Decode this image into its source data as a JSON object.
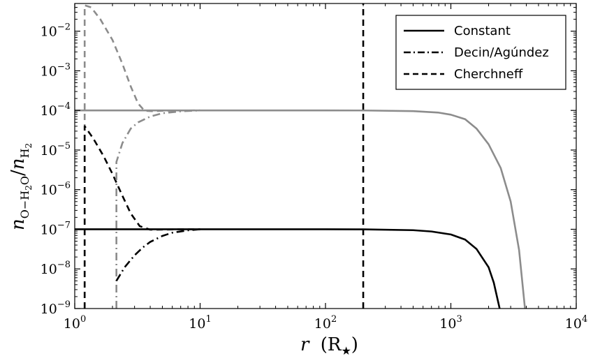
{
  "chart_data": {
    "type": "line",
    "xscale": "log",
    "yscale": "log",
    "xlim": [
      1,
      10000
    ],
    "ylim": [
      1e-09,
      0.05
    ],
    "xticks": [
      {
        "value": 1,
        "base": "10",
        "exp": "0"
      },
      {
        "value": 10,
        "base": "10",
        "exp": "1"
      },
      {
        "value": 100,
        "base": "10",
        "exp": "2"
      },
      {
        "value": 1000,
        "base": "10",
        "exp": "3"
      },
      {
        "value": 10000,
        "base": "10",
        "exp": "4"
      }
    ],
    "yticks": [
      {
        "value": 1e-09,
        "base": "10",
        "exp": "−9"
      },
      {
        "value": 1e-08,
        "base": "10",
        "exp": "−8"
      },
      {
        "value": 1e-07,
        "base": "10",
        "exp": "−7"
      },
      {
        "value": 1e-06,
        "base": "10",
        "exp": "−6"
      },
      {
        "value": 1e-05,
        "base": "10",
        "exp": "−5"
      },
      {
        "value": 0.0001,
        "base": "10",
        "exp": "−4"
      },
      {
        "value": 0.001,
        "base": "10",
        "exp": "−3"
      },
      {
        "value": 0.01,
        "base": "10",
        "exp": "−2"
      }
    ],
    "xlabel": {
      "main": "r",
      "unit": "(R",
      "sub": "★",
      "close": ")"
    },
    "ylabel": {
      "n": "n",
      "sub1": "O−H",
      "sub1b": "2",
      "sub1c": "O",
      "slash": "/",
      "n2": "n",
      "sub2": "H",
      "sub2b": "2"
    },
    "legend": {
      "position": "top-right",
      "entries": [
        {
          "label": "Constant",
          "style": "solid"
        },
        {
          "label": "Decin/Agúndez",
          "style": "dashdot"
        },
        {
          "label": "Cherchneff",
          "style": "dashed"
        }
      ]
    },
    "grid": false,
    "colors": {
      "black": "#000000",
      "gray": "#8c8c8c"
    },
    "series": [
      {
        "style": "solid",
        "color": "#8c8c8c",
        "points": [
          [
            1,
            0.0001
          ],
          [
            10,
            0.0001
          ],
          [
            100,
            0.0001
          ],
          [
            200,
            9.98e-05
          ],
          [
            500,
            9.6e-05
          ],
          [
            800,
            8.8e-05
          ],
          [
            1000,
            7.8e-05
          ],
          [
            1300,
            6e-05
          ],
          [
            1600,
            3.5e-05
          ],
          [
            2000,
            1.4e-05
          ],
          [
            2500,
            3.5e-06
          ],
          [
            3000,
            5e-07
          ],
          [
            3500,
            3e-08
          ],
          [
            3900,
            1e-09
          ]
        ]
      },
      {
        "style": "solid",
        "color": "#000000",
        "points": [
          [
            1,
            1e-07
          ],
          [
            10,
            1e-07
          ],
          [
            100,
            1e-07
          ],
          [
            200,
            9.98e-08
          ],
          [
            500,
            9.5e-08
          ],
          [
            700,
            8.8e-08
          ],
          [
            1000,
            7.4e-08
          ],
          [
            1300,
            5.5e-08
          ],
          [
            1600,
            3.2e-08
          ],
          [
            2000,
            1.1e-08
          ],
          [
            2200,
            4.5e-09
          ],
          [
            2450,
            1e-09
          ]
        ]
      },
      {
        "style": "dashed",
        "color": "#8c8c8c",
        "points": [
          [
            1.2,
            1e-09
          ],
          [
            1.2,
            0.045
          ],
          [
            1.35,
            0.04
          ],
          [
            1.6,
            0.02
          ],
          [
            2,
            0.006
          ],
          [
            2.4,
            0.0015
          ],
          [
            2.8,
            0.0004
          ],
          [
            3.2,
            0.00015
          ],
          [
            3.6,
            9.8e-05
          ],
          [
            4.2,
            9.55e-05
          ],
          [
            5,
            9.8e-05
          ],
          [
            7,
            9.97e-05
          ],
          [
            10,
            0.0001
          ]
        ]
      },
      {
        "style": "dashed",
        "color": "#000000",
        "points": [
          [
            1.2,
            1e-09
          ],
          [
            1.2,
            4e-05
          ],
          [
            1.4,
            2e-05
          ],
          [
            1.7,
            7e-06
          ],
          [
            2,
            2.5e-06
          ],
          [
            2.4,
            7e-07
          ],
          [
            2.8,
            2.5e-07
          ],
          [
            3.3,
            1.2e-07
          ],
          [
            4,
            9.8e-08
          ],
          [
            5,
            9.85e-08
          ],
          [
            7,
            9.98e-08
          ],
          [
            10,
            1e-07
          ]
        ]
      },
      {
        "style": "dashdot",
        "color": "#8c8c8c",
        "points": [
          [
            2.15,
            1e-09
          ],
          [
            2.15,
            5e-06
          ],
          [
            2.4,
            1.5e-05
          ],
          [
            2.8,
            3.5e-05
          ],
          [
            3.2,
            5e-05
          ],
          [
            4,
            7e-05
          ],
          [
            5,
            8.5e-05
          ],
          [
            7,
            9.5e-05
          ],
          [
            10,
            0.0001
          ]
        ]
      },
      {
        "style": "dashdot",
        "color": "#000000",
        "points": [
          [
            2.15,
            5e-09
          ],
          [
            2.5,
            1.1e-08
          ],
          [
            3,
            2.2e-08
          ],
          [
            3.5,
            3.5e-08
          ],
          [
            4,
            4.8e-08
          ],
          [
            5,
            6.8e-08
          ],
          [
            6,
            8.2e-08
          ],
          [
            8,
            9.4e-08
          ],
          [
            10,
            1e-07
          ]
        ]
      },
      {
        "style": "dashed",
        "color": "#000000",
        "points": [
          [
            200,
            1e-09
          ],
          [
            200,
            0.05
          ]
        ]
      }
    ]
  }
}
